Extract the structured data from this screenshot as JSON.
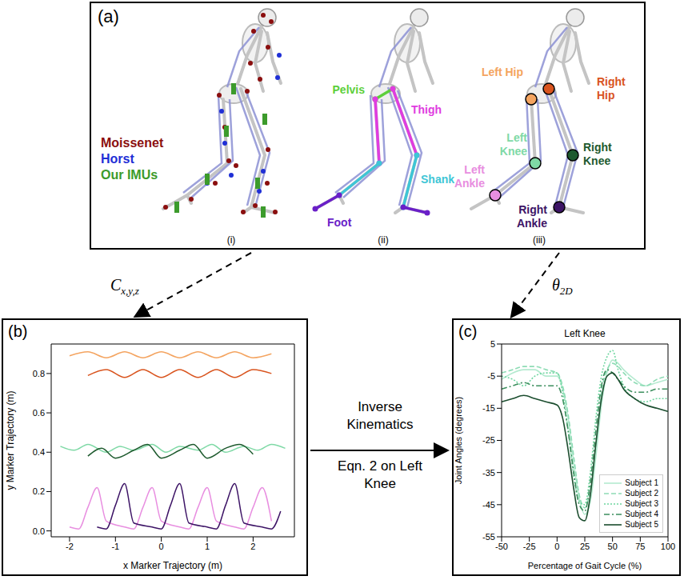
{
  "panel_a": {
    "label": "(a)",
    "subfigures": [
      {
        "label": "(i)",
        "marker_sets": [
          {
            "name": "Moissenet",
            "color": "#8b0f0f"
          },
          {
            "name": "Horst",
            "color": "#1f2fd6"
          },
          {
            "name": "Our IMUs",
            "color": "#3c9b2c"
          }
        ]
      },
      {
        "label": "(ii)",
        "segments": [
          {
            "name": "Pelvis",
            "color": "#5ccf3a"
          },
          {
            "name": "Thigh",
            "color": "#e03ce0"
          },
          {
            "name": "Shank",
            "color": "#3ec6d6"
          },
          {
            "name": "Foot",
            "color": "#6a1fc8"
          }
        ]
      },
      {
        "label": "(iii)"
      }
    ]
  },
  "arrows": {
    "markers": {
      "symbol": "C",
      "subscript": "x,y,z"
    },
    "angles": {
      "symbol": "θ",
      "subscript": "2D"
    },
    "method": [
      "Inverse Kinematics",
      "Eqn. 2 on Left Knee"
    ]
  },
  "chart_data": [
    {
      "label": "(b)",
      "type": "line",
      "x_label": "x Marker Trajectory (m)",
      "y_label": "y Marker Trajectory (m)",
      "xlim": [
        -2.4,
        2.9
      ],
      "ylim": [
        -0.03,
        0.95
      ],
      "xticks": [
        -2,
        -1,
        0,
        1,
        2
      ],
      "yticks": [
        {
          "value": 0,
          "label": "0.0"
        },
        {
          "value": 0.2,
          "label": "0.2"
        },
        {
          "value": 0.4,
          "label": "0.4"
        },
        {
          "value": 0.6,
          "label": "0.6"
        },
        {
          "value": 0.8,
          "label": "0.8"
        }
      ],
      "series": [
        {
          "name": "Left Hip",
          "color": "#f4a460",
          "x": [
            -2.0,
            -1.6,
            -1.2,
            -0.8,
            -0.4,
            0.0,
            0.4,
            0.8,
            1.2,
            1.6,
            2.0,
            2.4
          ],
          "values": [
            0.89,
            0.91,
            0.88,
            0.91,
            0.88,
            0.91,
            0.88,
            0.91,
            0.88,
            0.91,
            0.88,
            0.9
          ]
        },
        {
          "name": "Right Hip",
          "color": "#d9541e",
          "x": [
            -1.6,
            -1.2,
            -0.8,
            -0.4,
            0.0,
            0.4,
            0.8,
            1.2,
            1.6,
            2.0,
            2.4
          ],
          "values": [
            0.79,
            0.82,
            0.78,
            0.82,
            0.78,
            0.82,
            0.78,
            0.82,
            0.78,
            0.82,
            0.8
          ]
        },
        {
          "name": "Left Knee",
          "color": "#7fd9a6",
          "x": [
            -2.2,
            -1.9,
            -1.6,
            -1.2,
            -0.9,
            -0.6,
            -0.2,
            0.1,
            0.4,
            0.8,
            1.1,
            1.4,
            1.8,
            2.1,
            2.4,
            2.7
          ],
          "values": [
            0.43,
            0.41,
            0.44,
            0.4,
            0.43,
            0.41,
            0.44,
            0.4,
            0.43,
            0.41,
            0.44,
            0.4,
            0.43,
            0.41,
            0.44,
            0.42
          ]
        },
        {
          "name": "Right Knee",
          "color": "#1e5a2e",
          "x": [
            -1.6,
            -1.3,
            -1.0,
            -0.6,
            -0.3,
            0.0,
            0.4,
            0.7,
            1.0,
            1.4,
            1.7,
            2.0
          ],
          "values": [
            0.38,
            0.42,
            0.37,
            0.41,
            0.44,
            0.37,
            0.41,
            0.44,
            0.37,
            0.42,
            0.44,
            0.39
          ]
        },
        {
          "name": "Left Ankle",
          "color": "#e88ee0",
          "x": [
            -2.0,
            -1.8,
            -1.6,
            -1.4,
            -1.2,
            -0.8,
            -0.6,
            -0.4,
            -0.2,
            0.0,
            0.4,
            0.6,
            0.8,
            1.0,
            1.2,
            1.6,
            1.8,
            2.0,
            2.2,
            2.4
          ],
          "values": [
            0.02,
            0.01,
            0.12,
            0.22,
            0.05,
            0.02,
            0.01,
            0.12,
            0.22,
            0.05,
            0.02,
            0.01,
            0.12,
            0.22,
            0.05,
            0.02,
            0.01,
            0.12,
            0.22,
            0.05
          ]
        },
        {
          "name": "Right Ankle",
          "color": "#3d1466",
          "x": [
            -1.4,
            -1.2,
            -1.0,
            -0.8,
            -0.6,
            -0.2,
            0.0,
            0.2,
            0.4,
            0.6,
            1.0,
            1.2,
            1.4,
            1.6,
            1.8,
            2.2,
            2.4,
            2.6
          ],
          "values": [
            0.02,
            0.01,
            0.13,
            0.24,
            0.04,
            0.02,
            0.01,
            0.13,
            0.24,
            0.04,
            0.02,
            0.01,
            0.13,
            0.24,
            0.04,
            0.02,
            0.01,
            0.1
          ]
        }
      ]
    },
    {
      "label": "(c)",
      "type": "line",
      "title": "Left Knee",
      "x_label": "Percentage of Gait Cycle (%)",
      "y_label": "Joint Angles (degrees)",
      "x": [
        -50,
        -40,
        -30,
        -20,
        -10,
        0,
        5,
        10,
        15,
        20,
        25,
        30,
        35,
        40,
        45,
        50,
        55,
        60,
        70,
        80,
        90,
        100
      ],
      "xlim": [
        -50,
        100
      ],
      "ylim": [
        -55,
        5
      ],
      "xticks": [
        -50,
        -25,
        0,
        25,
        50,
        75,
        100
      ],
      "yticks": [
        5,
        -5,
        -15,
        -25,
        -35,
        -45,
        -55
      ],
      "legend": "lower right",
      "series": [
        {
          "name": "Subject 1",
          "color": "#b5ead0",
          "line_style": "solid",
          "values": [
            -6,
            -4,
            -3,
            -3,
            -5,
            -5,
            -9,
            -18,
            -32,
            -43,
            -48,
            -44,
            -30,
            -14,
            -4,
            0,
            -1,
            -3,
            -6,
            -8,
            -7,
            -6
          ]
        },
        {
          "name": "Subject 2",
          "color": "#8edcb5",
          "line_style": "dashed",
          "values": [
            -4,
            -3,
            -2,
            -2,
            -3,
            -4,
            -8,
            -17,
            -30,
            -42,
            -46,
            -40,
            -26,
            -10,
            -3,
            -1,
            -2,
            -4,
            -7,
            -8,
            -6,
            -5
          ]
        },
        {
          "name": "Subject 3",
          "color": "#6fd6a0",
          "line_style": "dotted",
          "values": [
            -5,
            -6,
            -8,
            -5,
            -4,
            -4,
            -10,
            -22,
            -36,
            -44,
            -45,
            -35,
            -18,
            -5,
            1,
            3,
            -3,
            -8,
            -12,
            -13,
            -12,
            -12
          ]
        },
        {
          "name": "Subject 4",
          "color": "#3d8f5e",
          "line_style": "dashdot",
          "values": [
            -9,
            -8,
            -7,
            -8,
            -8,
            -8,
            -12,
            -22,
            -35,
            -45,
            -47,
            -38,
            -22,
            -8,
            -3,
            -4,
            -6,
            -8,
            -10,
            -10,
            -9,
            -9
          ]
        },
        {
          "name": "Subject 5",
          "color": "#1b4d2e",
          "line_style": "solid",
          "values": [
            -13,
            -12,
            -11,
            -12,
            -13,
            -14,
            -18,
            -28,
            -40,
            -49,
            -50,
            -42,
            -26,
            -12,
            -5,
            -4,
            -6,
            -9,
            -12,
            -14,
            -15,
            -16
          ]
        }
      ]
    }
  ]
}
